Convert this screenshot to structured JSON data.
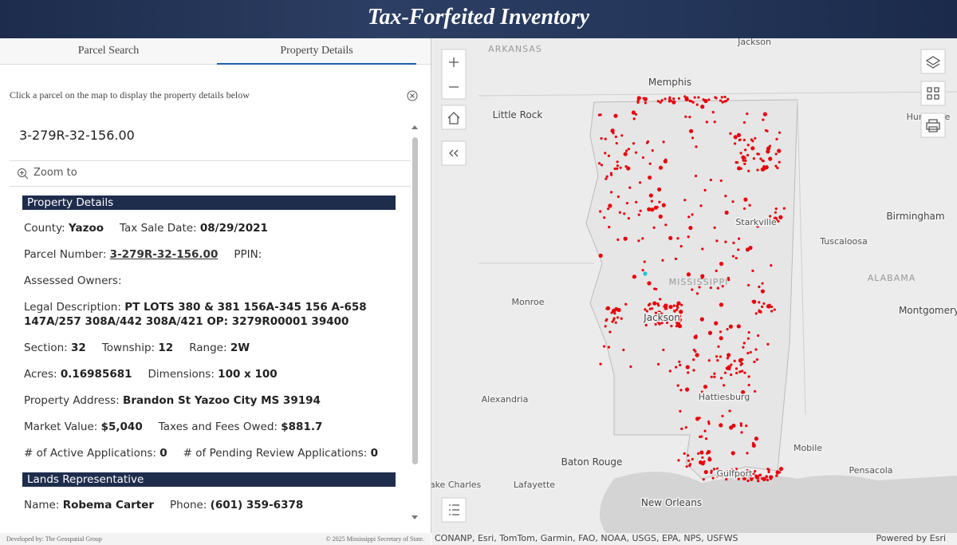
{
  "header": {
    "title": "Tax-Forfeited Inventory"
  },
  "tabs": [
    "Parcel Search",
    "Property Details"
  ],
  "panel": {
    "instruction": "Click a parcel on the map to display the property details below",
    "parcel_id": "3-279R-32-156.00",
    "zoom_to": "Zoom to",
    "sections": [
      {
        "title": "Property Details",
        "rows": [
          [
            {
              "label": "County:",
              "value": "Yazoo"
            },
            {
              "label": "Tax Sale Date:",
              "value": "08/29/2021"
            }
          ],
          [
            {
              "label": "Parcel Number:",
              "value": "3-279R-32-156.00",
              "link": true
            },
            {
              "label": "PPIN:"
            }
          ],
          [
            {
              "label": "Assessed Owners:"
            }
          ],
          [
            {
              "label": "Legal Description:",
              "value": "PT LOTS 380 & 381 156A-345 156 A-658 147A/257 308A/442 308A/421 OP: 3279R00001 39400"
            }
          ],
          [
            {
              "label": "Section:",
              "value": "32"
            },
            {
              "label": "Township:",
              "value": "12"
            },
            {
              "label": "Range:",
              "value": "2W"
            }
          ],
          [
            {
              "label": "Acres:",
              "value": "0.16985681"
            },
            {
              "label": "Dimensions:",
              "value": "100 x 100"
            }
          ],
          [
            {
              "label": "Property Address:",
              "value": "Brandon St Yazoo City MS 39194"
            }
          ],
          [
            {
              "label": "Market Value:",
              "value": "$5,040"
            },
            {
              "label": "Taxes and Fees Owed:",
              "value": "$881.7"
            }
          ],
          [
            {
              "label": "# of Active Applications:",
              "value": "0"
            },
            {
              "label": "# of Pending Review Applications:",
              "value": "0"
            }
          ]
        ]
      },
      {
        "title": "Lands Representative",
        "rows": [
          [
            {
              "label": "Name:",
              "value": "Robema Carter"
            },
            {
              "label": "Phone:",
              "value": "(601) 359-6378"
            }
          ]
        ]
      }
    ]
  },
  "footer": {
    "developer": "Developed by: The Geospatial Group",
    "copyright": "© 2025 Mississippi Secretary of State."
  },
  "map": {
    "labels": [
      "Jackson",
      "ARKANSAS",
      "Memphis",
      "Little Rock",
      "Huntsville",
      "Starkville",
      "Birmingham",
      "Tuscaloosa",
      "MISSISSIPPI",
      "ALABAMA",
      "Monroe",
      "Jackson",
      "Montgomery",
      "Alexandria",
      "Hattiesburg",
      "Mobile",
      "Baton Rouge",
      "Pensacola",
      "Lake Charles",
      "Lafayette",
      "Gulfport",
      "New Orleans"
    ],
    "attribution": "CONANP, Esri, TomTom, Garmin, FAO, NOAA, USGS, EPA, NPS, USFWS",
    "powered_by": "Powered by Esri"
  }
}
